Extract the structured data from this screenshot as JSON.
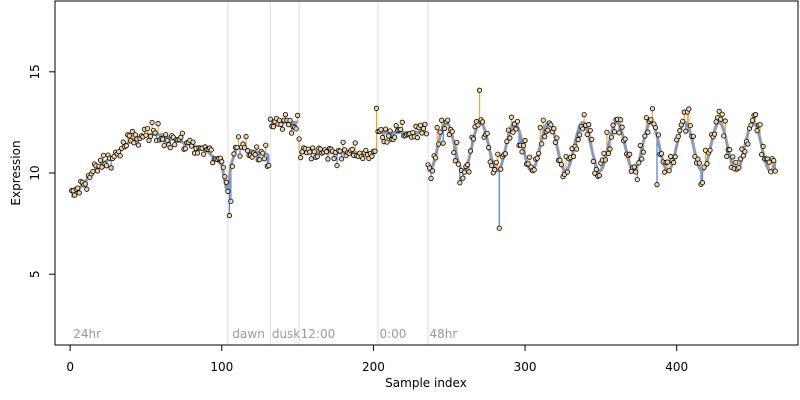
{
  "chart_data": {
    "type": "scatter",
    "title": "",
    "xlabel": "Sample index",
    "ylabel": "Expression",
    "xlim": [
      -10,
      480
    ],
    "ylim": [
      1.5,
      18.5
    ],
    "xticks": [
      0,
      100,
      200,
      300,
      400
    ],
    "yticks": [
      5,
      10,
      15
    ],
    "grid": false,
    "legend": "none",
    "colors": {
      "point_fill": "#f2d6a8",
      "fit_line": "#8c9bb5",
      "residual_above": "#f2a43a",
      "residual_below": "#4f7fd6",
      "region_line": "#dddddd",
      "region_text": "#9a9a9a"
    },
    "region_boundaries": [
      104,
      132,
      151,
      203,
      236
    ],
    "region_labels": [
      {
        "x": 2,
        "text": "24hr"
      },
      {
        "x": 107,
        "text": "dawn"
      },
      {
        "x": 133,
        "text": "dusk"
      },
      {
        "x": 152,
        "text": "12:00"
      },
      {
        "x": 204,
        "text": "0:00"
      },
      {
        "x": 237,
        "text": "48hr"
      }
    ],
    "segments": [
      {
        "start": 1,
        "end": 103,
        "type": "curve",
        "x": [
          1,
          10,
          20,
          30,
          40,
          50,
          60,
          70,
          80,
          90,
          100,
          103
        ],
        "y": [
          8.8,
          9.6,
          10.4,
          10.9,
          11.6,
          11.9,
          11.9,
          11.6,
          11.4,
          11.1,
          10.4,
          9.2
        ]
      },
      {
        "start": 104,
        "end": 131,
        "type": "curve",
        "x": [
          104,
          106,
          110,
          120,
          131
        ],
        "y": [
          9.0,
          10.4,
          11.3,
          11.1,
          10.9
        ]
      },
      {
        "start": 132,
        "end": 150,
        "type": "curve",
        "x": [
          132,
          140,
          150
        ],
        "y": [
          12.6,
          12.5,
          12.5
        ]
      },
      {
        "start": 151,
        "end": 202,
        "type": "curve",
        "x": [
          151,
          175,
          202
        ],
        "y": [
          11.0,
          11.0,
          11.0
        ]
      },
      {
        "start": 203,
        "end": 235,
        "type": "curve",
        "x": [
          203,
          220,
          235
        ],
        "y": [
          12.0,
          12.0,
          12.0
        ]
      },
      {
        "start": 236,
        "end": 465,
        "type": "wave",
        "mean": 11.3,
        "amp": 1.2,
        "period": 22.5,
        "phase": 248
      }
    ],
    "points_description": "465 samples; sampled deviations from fitted curve",
    "point_count": 465
  }
}
